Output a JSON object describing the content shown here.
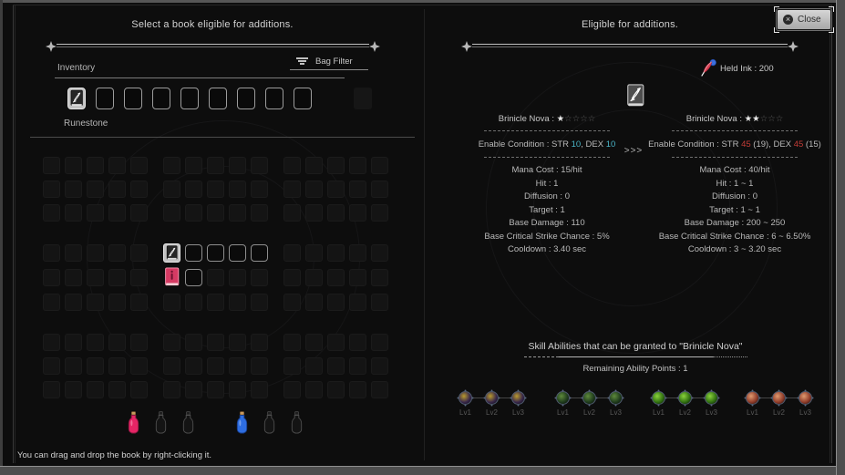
{
  "titles": {
    "left": "Select a book eligible for additions.",
    "right": "Eligible for additions."
  },
  "close_button": {
    "label": "Close",
    "icon_glyph": "×"
  },
  "bag_filter": {
    "label": "Bag Filter"
  },
  "inventory": {
    "label": "Inventory",
    "slot_count": 10,
    "book_slot_index": 1,
    "inactive_slot_indexes": [
      10
    ]
  },
  "runestone": {
    "label": "Runestone",
    "grid": {
      "col_groups": 3,
      "cols_per_group": 5,
      "row_groups": 3,
      "rows_per_group": 3,
      "book_cell": {
        "row": 4,
        "col": 6
      },
      "red_book_cell": {
        "row": 5,
        "col": 6
      },
      "highlight_cells": [
        [
          4,
          7
        ],
        [
          4,
          8
        ],
        [
          4,
          9
        ],
        [
          4,
          10
        ],
        [
          5,
          7
        ]
      ]
    }
  },
  "potions": {
    "groups": [
      [
        "red",
        "empty",
        "empty"
      ],
      [
        "blue",
        "empty",
        "empty"
      ]
    ],
    "colors": {
      "red": "#e52565",
      "blue": "#2e6de0"
    }
  },
  "footer_hint": "You can drag and drop the book by right-clicking it.",
  "held_ink": {
    "label": "Held Ink",
    "value": "200"
  },
  "compare": {
    "separator": ">>>",
    "before": {
      "name": "Brinicle Nova",
      "stars_filled": "★",
      "stars_empty": "☆☆☆☆",
      "condition": {
        "label": "Enable Condition",
        "str_label": "STR",
        "str_value": "10",
        "str_extra": "",
        "comma": ",",
        "dex_label": "DEX",
        "dex_value": "10",
        "dex_extra": ""
      },
      "stats": [
        {
          "label": "Mana Cost",
          "value": "15/hit"
        },
        {
          "label": "Hit",
          "value": "1"
        },
        {
          "label": "Diffusion",
          "value": "0"
        },
        {
          "label": "Target",
          "value": "1"
        },
        {
          "label": "Base Damage",
          "value": "110"
        },
        {
          "label": "Base Critical Strike Chance",
          "value": "5%"
        },
        {
          "label": "Cooldown",
          "value": "3.40 sec"
        }
      ]
    },
    "after": {
      "name": "Brinicle Nova",
      "stars_filled": "★★",
      "stars_empty": "☆☆☆",
      "condition": {
        "label": "Enable Condition",
        "str_label": "STR",
        "str_value": "45",
        "str_extra": "(19)",
        "comma": ",",
        "dex_label": "DEX",
        "dex_value": "45",
        "dex_extra": "(15)"
      },
      "stats": [
        {
          "label": "Mana Cost",
          "value": "40/hit"
        },
        {
          "label": "Hit",
          "value": "1 ~ 1"
        },
        {
          "label": "Diffusion",
          "value": "0"
        },
        {
          "label": "Target",
          "value": "1 ~ 1"
        },
        {
          "label": "Base Damage",
          "value": "200 ~ 250"
        },
        {
          "label": "Base Critical Strike Chance",
          "value": "6 ~ 6.50%"
        },
        {
          "label": "Cooldown",
          "value": "3 ~ 3.20 sec"
        }
      ]
    }
  },
  "abilities": {
    "title": "Skill Abilities that can be granted to \"Brinicle Nova\"",
    "remaining_label": "Remaining Ability Points",
    "remaining_value": "1",
    "level_labels": [
      "Lv1",
      "Lv2",
      "Lv3"
    ],
    "groups": [
      {
        "name": "ability-purple",
        "inner_color": "#37264a",
        "accent_color": "#b89a2e"
      },
      {
        "name": "ability-dark-green",
        "inner_color": "#1e3a1c",
        "accent_color": "#5e8a3c"
      },
      {
        "name": "ability-green",
        "inner_color": "#2f6e10",
        "accent_color": "#8ad23c"
      },
      {
        "name": "ability-red",
        "inner_color": "#8e3a28",
        "accent_color": "#e09a70"
      }
    ]
  },
  "format": {
    "colon": " : "
  }
}
